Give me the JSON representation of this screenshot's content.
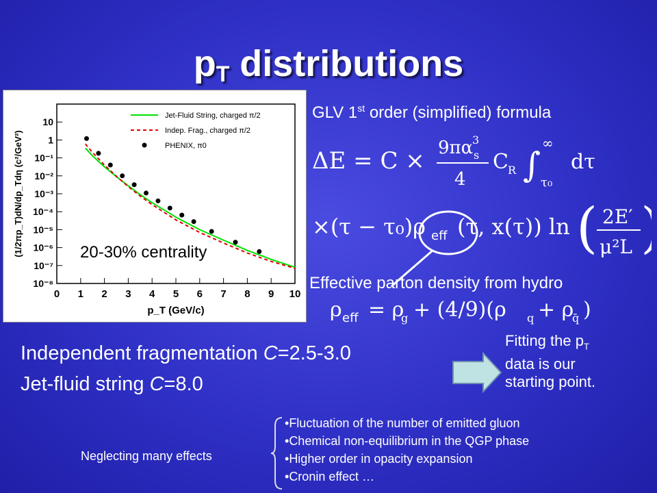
{
  "title": {
    "main": "p",
    "sub": "T",
    "rest": " distributions"
  },
  "plot": {
    "centrality_label": "20-30% centrality",
    "ylabel": "(1/2πp_T)dN/dp_Tdη (c²/GeV²)",
    "xlabel": "p_T (GeV/c)",
    "legend": [
      {
        "label": "Jet-Fluid String, charged π/2",
        "color": "#00e000",
        "style": "solid"
      },
      {
        "label": "Indep. Frag., charged π/2",
        "color": "#e00000",
        "style": "dashed"
      },
      {
        "label": "PHENIX, π0",
        "color": "#000000",
        "style": "marker"
      }
    ]
  },
  "chart_data": {
    "type": "scatter",
    "xlabel": "p_T (GeV/c)",
    "ylabel": "(1/2πp_T)dN/dp_Tdη (c²/GeV²)",
    "xlim": [
      0,
      10
    ],
    "ylim": [
      1e-08,
      100
    ],
    "yscale": "log",
    "xticks": [
      "0",
      "1",
      "2",
      "3",
      "4",
      "5",
      "6",
      "7",
      "8",
      "9",
      "10"
    ],
    "yticks": [
      "10⁻⁸",
      "10⁻⁷",
      "10⁻⁶",
      "10⁻⁵",
      "10⁻⁴",
      "10⁻³",
      "10⁻²",
      "10⁻¹",
      "1",
      "10"
    ],
    "legend_position": "top-right",
    "series": [
      {
        "name": "Jet-Fluid String, charged π/2",
        "kind": "line",
        "x": [
          1.2,
          1.5,
          2,
          2.5,
          3,
          3.5,
          4,
          5,
          6,
          7,
          8,
          9,
          10
        ],
        "y": [
          0.35,
          0.13,
          0.032,
          0.009,
          0.0028,
          0.0009,
          0.00032,
          5e-05,
          1e-05,
          2.6e-06,
          7e-07,
          2.2e-07,
          8e-08
        ]
      },
      {
        "name": "Indep. Frag., charged π/2",
        "kind": "dashed",
        "x": [
          1.2,
          1.5,
          2,
          2.5,
          3,
          3.5,
          4,
          5,
          6,
          7,
          8,
          9,
          10
        ],
        "y": [
          0.6,
          0.2,
          0.04,
          0.0095,
          0.0025,
          0.00075,
          0.00025,
          3.5e-05,
          7e-06,
          1.8e-06,
          5e-07,
          1.7e-07,
          7e-08
        ]
      },
      {
        "name": "PHENIX, π0",
        "kind": "marker",
        "x": [
          1.25,
          1.75,
          2.25,
          2.75,
          3.25,
          3.75,
          4.25,
          4.75,
          5.25,
          5.75,
          6.5,
          7.5,
          8.5
        ],
        "y": [
          1.2,
          0.18,
          0.04,
          0.01,
          0.0032,
          0.0011,
          0.0004,
          0.00016,
          6.5e-05,
          2.8e-05,
          8e-06,
          2e-06,
          6e-07
        ]
      }
    ]
  },
  "glv_text": {
    "pre": "GLV 1",
    "sup": "st",
    "post": " order (simplified) formula"
  },
  "effective_text": "Effective parton density from hydro",
  "indep_text": {
    "pre": "Independent fragmentation ",
    "c": "C",
    "post": "=2.5-3.0"
  },
  "jetfluid_text": {
    "pre": "Jet-fluid string ",
    "c": "C",
    "post": "=8.0"
  },
  "fitting_text": {
    "l1": "Fitting the p",
    "l1sub": "T",
    "l2": "data is our",
    "l3": "starting point."
  },
  "neglect_text": "Neglecting many effects",
  "effects": [
    "Fluctuation of the number of emitted gluon",
    "Chemical non-equilibrium in the QGP phase",
    "Higher order in opacity expansion",
    "Cronin effect …"
  ],
  "colors": {
    "background": "#3334c8",
    "annotation_circle": "#ffffff",
    "arrow_fill": "#bfe3e3"
  }
}
